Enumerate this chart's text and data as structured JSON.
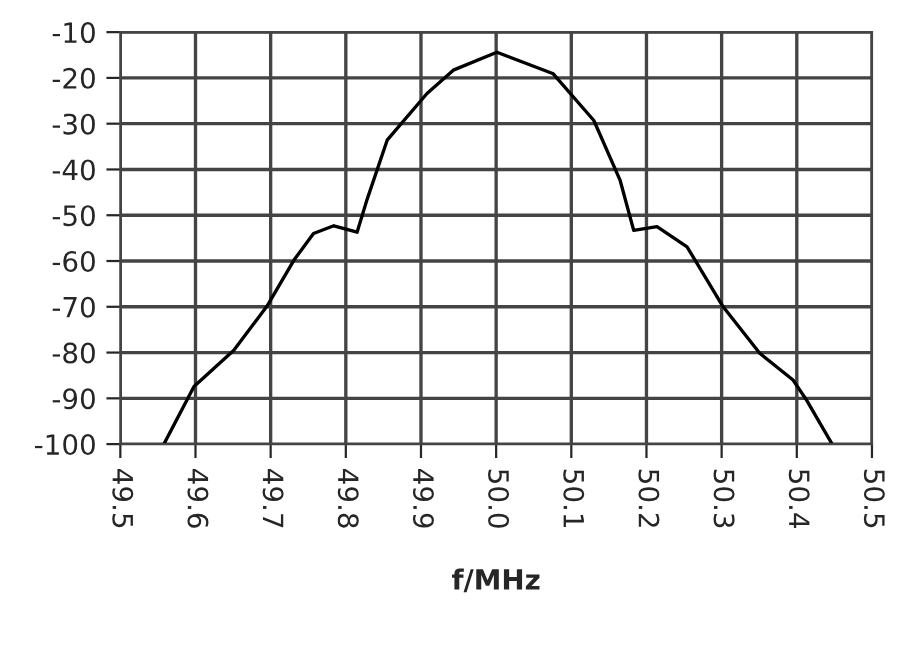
{
  "chart_data": {
    "type": "line",
    "xlabel": "f/MHz",
    "x": [
      49.558,
      49.598,
      49.651,
      49.695,
      49.731,
      49.757,
      49.784,
      49.815,
      49.828,
      49.855,
      49.908,
      49.943,
      50.001,
      50.076,
      50.13,
      50.165,
      50.183,
      50.214,
      50.254,
      50.302,
      50.351,
      50.395,
      50.413,
      50.447
    ],
    "series": [
      {
        "color": "#000000",
        "values": [
          -100,
          -87.4,
          -79.5,
          -69.9,
          -59.8,
          -54,
          -52.3,
          -53.7,
          -46.7,
          -33.6,
          -23.4,
          -18.3,
          -14.4,
          -19.1,
          -29.3,
          -42.4,
          -53.3,
          -52.5,
          -56.9,
          -70,
          -80.2,
          -86,
          -90.4,
          -100
        ]
      }
    ],
    "xlim": [
      49.5,
      50.5
    ],
    "ylim": [
      -100,
      -10
    ],
    "xticks": [
      49.5,
      49.6,
      49.7,
      49.8,
      49.9,
      {
        "value": 50.0,
        "label": "50.0"
      },
      50.1,
      50.2,
      50.3,
      50.4,
      50.5
    ],
    "yticks": [
      -100,
      -90,
      -80,
      -70,
      -60,
      -50,
      -40,
      -30,
      -20,
      -10
    ],
    "grid": true,
    "line_style": "solid",
    "marker": "none"
  }
}
